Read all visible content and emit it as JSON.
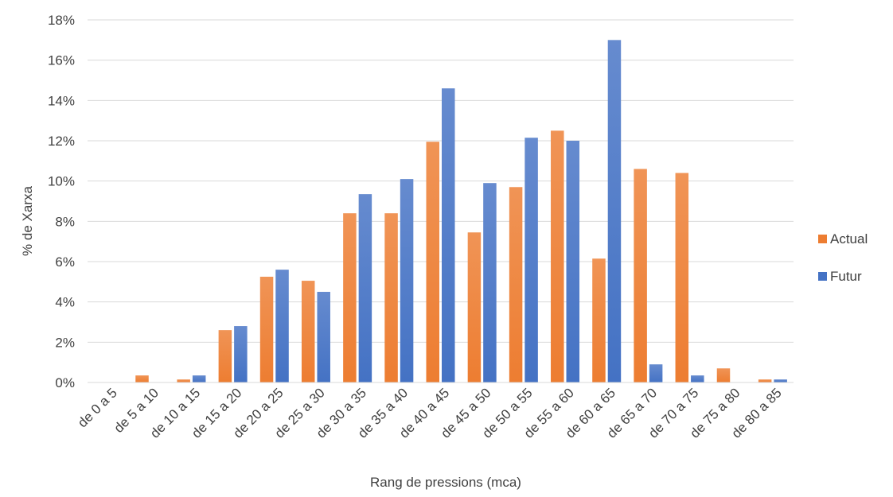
{
  "chart_data": {
    "type": "bar",
    "title": "",
    "xlabel": "Rang de pressions (mca)",
    "ylabel": "% de Xarxa",
    "ylim": [
      0,
      18
    ],
    "y_tick_step": 2,
    "y_tick_suffix": "%",
    "grid": true,
    "legend_position": "right",
    "categories": [
      "de 0 a 5",
      "de 5 a 10",
      "de 10 a 15",
      "de 15 a 20",
      "de 20 a 25",
      "de 25 a 30",
      "de 30 a 35",
      "de 35 a 40",
      "de 40 a 45",
      "de 45 a 50",
      "de 50 a 55",
      "de 55 a 60",
      "de 60 a 65",
      "de 65 a 70",
      "de 70 a 75",
      "de 75 a 80",
      "de 80 a 85"
    ],
    "series": [
      {
        "name": "Actual",
        "color": "#ED7D31",
        "values": [
          0,
          0.35,
          0.15,
          2.6,
          5.25,
          5.05,
          8.4,
          8.4,
          11.95,
          7.45,
          9.7,
          12.5,
          6.15,
          10.6,
          10.4,
          0.7,
          0.15
        ]
      },
      {
        "name": "Futur",
        "color": "#4472C4",
        "values": [
          0,
          0,
          0.35,
          2.8,
          5.6,
          4.5,
          9.35,
          10.1,
          14.6,
          9.9,
          12.15,
          12.0,
          17.0,
          0.9,
          0.35,
          0,
          0.15
        ]
      }
    ]
  }
}
